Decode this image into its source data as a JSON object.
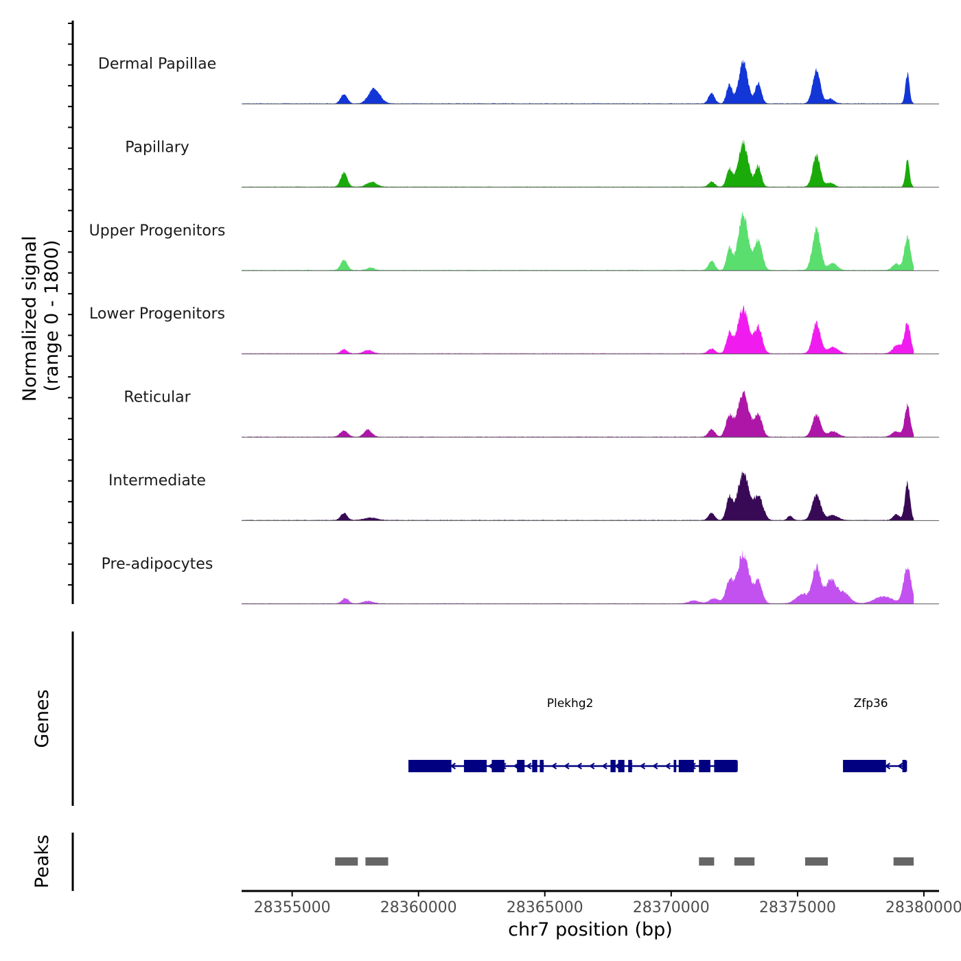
{
  "chart_data": {
    "type": "area",
    "title": "",
    "ylabel": "Normalized signal\n(range 0 - 1800)",
    "ylabel_lines": [
      "Normalized signal",
      "(range 0 - 1800)"
    ],
    "ylim": [
      0,
      1800
    ],
    "xlabel": "chr7 position (bp)",
    "xlim": [
      28353000,
      28380600
    ],
    "x_ticks": [
      28355000,
      28360000,
      28365000,
      28370000,
      28375000,
      28380000
    ],
    "x_tick_labels": [
      "28355000",
      "28360000",
      "28365000",
      "28370000",
      "28375000",
      "28380000"
    ],
    "signal_start": 28353000,
    "signal_end": 28379600,
    "background": 18,
    "tracks": [
      {
        "name": "Dermal Papillae",
        "color": "#1336d6",
        "peaks": [
          {
            "center": 28357050,
            "width": 130,
            "height": 300
          },
          {
            "center": 28358250,
            "width": 220,
            "height": 480
          },
          {
            "center": 28371600,
            "width": 120,
            "height": 330
          },
          {
            "center": 28372300,
            "width": 110,
            "height": 600
          },
          {
            "center": 28372850,
            "width": 180,
            "height": 1300
          },
          {
            "center": 28373450,
            "width": 120,
            "height": 650
          },
          {
            "center": 28375750,
            "width": 150,
            "height": 1060
          },
          {
            "center": 28376300,
            "width": 150,
            "height": 150
          },
          {
            "center": 28379350,
            "width": 80,
            "height": 920
          }
        ]
      },
      {
        "name": "Papillary",
        "color": "#1aaa0a",
        "peaks": [
          {
            "center": 28357050,
            "width": 130,
            "height": 450
          },
          {
            "center": 28358150,
            "width": 200,
            "height": 150
          },
          {
            "center": 28371600,
            "width": 120,
            "height": 170
          },
          {
            "center": 28372300,
            "width": 110,
            "height": 570
          },
          {
            "center": 28372850,
            "width": 200,
            "height": 1400
          },
          {
            "center": 28373450,
            "width": 120,
            "height": 650
          },
          {
            "center": 28375750,
            "width": 150,
            "height": 1000
          },
          {
            "center": 28376300,
            "width": 150,
            "height": 130
          },
          {
            "center": 28379350,
            "width": 80,
            "height": 820
          }
        ]
      },
      {
        "name": "Upper Progenitors",
        "color": "#5ade6e",
        "peaks": [
          {
            "center": 28357050,
            "width": 130,
            "height": 320
          },
          {
            "center": 28358100,
            "width": 150,
            "height": 80
          },
          {
            "center": 28371600,
            "width": 120,
            "height": 300
          },
          {
            "center": 28372300,
            "width": 110,
            "height": 700
          },
          {
            "center": 28372850,
            "width": 200,
            "height": 1780
          },
          {
            "center": 28373450,
            "width": 150,
            "height": 950
          },
          {
            "center": 28375750,
            "width": 160,
            "height": 1300
          },
          {
            "center": 28376400,
            "width": 170,
            "height": 220
          },
          {
            "center": 28378900,
            "width": 150,
            "height": 200
          },
          {
            "center": 28379350,
            "width": 120,
            "height": 1060
          }
        ]
      },
      {
        "name": "Lower Progenitors",
        "color": "#f01cef",
        "peaks": [
          {
            "center": 28357050,
            "width": 130,
            "height": 130
          },
          {
            "center": 28358000,
            "width": 170,
            "height": 110
          },
          {
            "center": 28371600,
            "width": 140,
            "height": 150
          },
          {
            "center": 28372300,
            "width": 120,
            "height": 600
          },
          {
            "center": 28372850,
            "width": 220,
            "height": 1450
          },
          {
            "center": 28373450,
            "width": 150,
            "height": 820
          },
          {
            "center": 28375750,
            "width": 160,
            "height": 940
          },
          {
            "center": 28376400,
            "width": 200,
            "height": 200
          },
          {
            "center": 28378950,
            "width": 170,
            "height": 270
          },
          {
            "center": 28379350,
            "width": 120,
            "height": 940
          }
        ]
      },
      {
        "name": "Reticular",
        "color": "#ad16a7",
        "peaks": [
          {
            "center": 28357050,
            "width": 150,
            "height": 190
          },
          {
            "center": 28358000,
            "width": 150,
            "height": 230
          },
          {
            "center": 28371600,
            "width": 130,
            "height": 240
          },
          {
            "center": 28372300,
            "width": 140,
            "height": 640
          },
          {
            "center": 28372850,
            "width": 220,
            "height": 1400
          },
          {
            "center": 28373450,
            "width": 150,
            "height": 700
          },
          {
            "center": 28375750,
            "width": 160,
            "height": 700
          },
          {
            "center": 28376400,
            "width": 200,
            "height": 170
          },
          {
            "center": 28378900,
            "width": 170,
            "height": 170
          },
          {
            "center": 28379350,
            "width": 110,
            "height": 1000
          }
        ]
      },
      {
        "name": "Intermediate",
        "color": "#380a55",
        "peaks": [
          {
            "center": 28357050,
            "width": 130,
            "height": 220
          },
          {
            "center": 28358100,
            "width": 250,
            "height": 80
          },
          {
            "center": 28371600,
            "width": 120,
            "height": 230
          },
          {
            "center": 28372300,
            "width": 120,
            "height": 700
          },
          {
            "center": 28372850,
            "width": 220,
            "height": 1500
          },
          {
            "center": 28373450,
            "width": 180,
            "height": 760
          },
          {
            "center": 28374700,
            "width": 100,
            "height": 140
          },
          {
            "center": 28375750,
            "width": 170,
            "height": 800
          },
          {
            "center": 28376400,
            "width": 200,
            "height": 160
          },
          {
            "center": 28378900,
            "width": 120,
            "height": 190
          },
          {
            "center": 28379350,
            "width": 100,
            "height": 1150
          }
        ]
      },
      {
        "name": "Pre-adipocytes",
        "color": "#c251ef",
        "peaks": [
          {
            "center": 28357100,
            "width": 130,
            "height": 170
          },
          {
            "center": 28358000,
            "width": 200,
            "height": 80
          },
          {
            "center": 28370900,
            "width": 200,
            "height": 90
          },
          {
            "center": 28371700,
            "width": 200,
            "height": 160
          },
          {
            "center": 28372300,
            "width": 140,
            "height": 680
          },
          {
            "center": 28372850,
            "width": 230,
            "height": 1600
          },
          {
            "center": 28373450,
            "width": 150,
            "height": 700
          },
          {
            "center": 28375200,
            "width": 250,
            "height": 300
          },
          {
            "center": 28375750,
            "width": 160,
            "height": 1150
          },
          {
            "center": 28376300,
            "width": 200,
            "height": 700
          },
          {
            "center": 28376800,
            "width": 250,
            "height": 350
          },
          {
            "center": 28378400,
            "width": 350,
            "height": 230
          },
          {
            "center": 28379350,
            "width": 150,
            "height": 1150
          }
        ]
      }
    ],
    "genes_panel_label": "Genes",
    "genes_color": "#000080",
    "genes": [
      {
        "name": "Plekhg2",
        "name_x": 28366000,
        "start": 28359600,
        "end": 28372600,
        "strand": "-",
        "exons": [
          [
            28359600,
            28361300
          ],
          [
            28361800,
            28362700
          ],
          [
            28362900,
            28363400
          ],
          [
            28363900,
            28364200
          ],
          [
            28364500,
            28364700
          ],
          [
            28364800,
            28364950
          ],
          [
            28367600,
            28367800
          ],
          [
            28367900,
            28368150
          ],
          [
            28368300,
            28368450
          ],
          [
            28370100,
            28370200
          ],
          [
            28370300,
            28370900
          ],
          [
            28371100,
            28371550
          ],
          [
            28371700,
            28372600
          ]
        ]
      },
      {
        "name": "Zfp36",
        "name_x": 28377900,
        "start": 28376800,
        "end": 28379300,
        "strand": "-",
        "exons": [
          [
            28376800,
            28378500
          ],
          [
            28379150,
            28379300
          ]
        ]
      }
    ],
    "peaks_panel_label": "Peaks",
    "peaks_color": "#666666",
    "peak_regions": [
      [
        28356700,
        28357600
      ],
      [
        28357900,
        28358800
      ],
      [
        28371100,
        28371700
      ],
      [
        28372500,
        28373300
      ],
      [
        28375300,
        28376200
      ],
      [
        28378800,
        28379600
      ]
    ]
  }
}
